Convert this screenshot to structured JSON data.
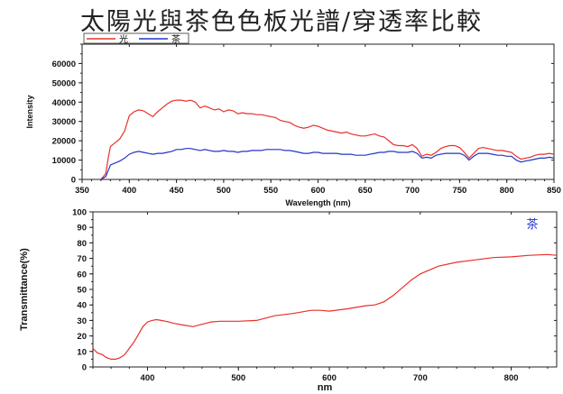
{
  "title": "太陽光與茶色色板光譜/穿透率比較",
  "chart_data": [
    {
      "type": "line",
      "xlabel": "Wavelength (nm)",
      "ylabel": "Intensity",
      "xlim": [
        350,
        850
      ],
      "ylim": [
        0,
        70000
      ],
      "x_ticks": [
        350,
        400,
        450,
        500,
        550,
        600,
        650,
        700,
        750,
        800,
        850
      ],
      "y_ticks": [
        0,
        10000,
        20000,
        30000,
        40000,
        50000,
        60000
      ],
      "legend": "top-left",
      "grid": false,
      "series": [
        {
          "name": "光",
          "color": "#e8302a",
          "x": [
            370,
            375,
            378,
            380,
            385,
            390,
            395,
            400,
            405,
            410,
            415,
            420,
            425,
            430,
            435,
            440,
            445,
            450,
            455,
            460,
            465,
            470,
            475,
            480,
            485,
            490,
            495,
            500,
            505,
            510,
            515,
            520,
            525,
            530,
            535,
            540,
            545,
            550,
            555,
            560,
            565,
            570,
            575,
            580,
            585,
            590,
            595,
            600,
            605,
            610,
            615,
            620,
            625,
            630,
            635,
            640,
            645,
            650,
            655,
            660,
            665,
            670,
            675,
            680,
            685,
            690,
            695,
            700,
            705,
            710,
            715,
            720,
            725,
            730,
            735,
            740,
            745,
            750,
            755,
            760,
            765,
            770,
            775,
            780,
            785,
            790,
            795,
            800,
            805,
            810,
            815,
            820,
            825,
            830,
            835,
            840,
            845,
            850
          ],
          "values": [
            0,
            3000,
            12000,
            17000,
            19000,
            21000,
            25000,
            33000,
            35000,
            36000,
            35500,
            34000,
            32500,
            35000,
            37000,
            39000,
            40500,
            41000,
            41000,
            40500,
            41000,
            40000,
            37000,
            38000,
            37000,
            36000,
            36500,
            35000,
            36000,
            35500,
            34000,
            34500,
            34000,
            34000,
            33500,
            33500,
            33000,
            32500,
            32000,
            30500,
            30000,
            29500,
            28000,
            27000,
            26500,
            27000,
            28000,
            27500,
            26500,
            25500,
            25000,
            24500,
            24000,
            24500,
            23500,
            23000,
            22500,
            22500,
            23000,
            23500,
            22500,
            22000,
            20000,
            18000,
            17500,
            17500,
            17000,
            18000,
            16000,
            12000,
            13000,
            12500,
            14000,
            16000,
            17000,
            17500,
            17500,
            16500,
            14000,
            11000,
            13500,
            16000,
            16500,
            16000,
            15500,
            15000,
            15000,
            14500,
            14000,
            12000,
            10500,
            11000,
            11500,
            12500,
            13000,
            13000,
            13500,
            13000
          ]
        },
        {
          "name": "茶",
          "color": "#2035c8",
          "x": [
            370,
            375,
            378,
            380,
            385,
            390,
            395,
            400,
            405,
            410,
            415,
            420,
            425,
            430,
            435,
            440,
            445,
            450,
            455,
            460,
            465,
            470,
            475,
            480,
            485,
            490,
            495,
            500,
            505,
            510,
            515,
            520,
            525,
            530,
            535,
            540,
            545,
            550,
            555,
            560,
            565,
            570,
            575,
            580,
            585,
            590,
            595,
            600,
            605,
            610,
            615,
            620,
            625,
            630,
            635,
            640,
            645,
            650,
            655,
            660,
            665,
            670,
            675,
            680,
            685,
            690,
            695,
            700,
            705,
            710,
            715,
            720,
            725,
            730,
            735,
            740,
            745,
            750,
            755,
            760,
            765,
            770,
            775,
            780,
            785,
            790,
            795,
            800,
            805,
            810,
            815,
            820,
            825,
            830,
            835,
            840,
            845,
            850
          ],
          "values": [
            0,
            1500,
            5000,
            7500,
            8500,
            9500,
            11000,
            13000,
            14000,
            14500,
            14000,
            13500,
            13000,
            13500,
            13500,
            14000,
            14500,
            15500,
            15500,
            16000,
            16000,
            15500,
            15000,
            15500,
            15000,
            14500,
            14500,
            15000,
            14500,
            14500,
            14000,
            14500,
            14500,
            15000,
            15000,
            15000,
            15500,
            15500,
            15500,
            15500,
            15000,
            15000,
            14500,
            14000,
            13500,
            13500,
            14000,
            14000,
            13500,
            13500,
            13500,
            13500,
            13000,
            13000,
            13000,
            12500,
            12500,
            12500,
            13000,
            13500,
            14000,
            14000,
            14500,
            14500,
            14000,
            14000,
            14000,
            14500,
            13500,
            11000,
            11500,
            11000,
            12500,
            13000,
            13500,
            13500,
            13500,
            13500,
            12500,
            10000,
            12000,
            13500,
            13500,
            13500,
            13000,
            12500,
            12500,
            12000,
            12000,
            10000,
            9000,
            9500,
            10000,
            10500,
            11000,
            11000,
            11500,
            11000
          ]
        }
      ]
    },
    {
      "type": "line",
      "xlabel": "nm",
      "ylabel": "Transmittance(%)",
      "xlim": [
        340,
        850
      ],
      "ylim": [
        0,
        100
      ],
      "x_ticks": [
        400,
        500,
        600,
        700,
        800
      ],
      "y_ticks": [
        0,
        10,
        20,
        30,
        40,
        50,
        60,
        70,
        80,
        90,
        100
      ],
      "legend": "top-right",
      "grid": false,
      "series": [
        {
          "name": "茶",
          "color": "#e8302a",
          "x": [
            340,
            345,
            350,
            355,
            360,
            365,
            370,
            375,
            380,
            385,
            390,
            395,
            400,
            405,
            410,
            415,
            420,
            430,
            440,
            450,
            460,
            470,
            480,
            500,
            520,
            540,
            560,
            580,
            590,
            600,
            620,
            640,
            650,
            660,
            670,
            680,
            690,
            700,
            720,
            740,
            760,
            780,
            800,
            820,
            840,
            850
          ],
          "values": [
            12,
            9,
            8,
            6,
            5,
            5,
            6,
            8,
            12,
            16,
            21,
            26,
            29,
            30,
            30.5,
            30,
            29.5,
            28,
            27,
            26,
            27.5,
            29,
            29.5,
            29.5,
            30,
            33,
            34.5,
            36.5,
            36.5,
            36,
            37.5,
            39.5,
            40,
            42,
            46,
            51,
            56,
            60,
            65,
            67.5,
            69,
            70.5,
            71,
            72,
            72.5,
            72
          ]
        }
      ]
    }
  ]
}
